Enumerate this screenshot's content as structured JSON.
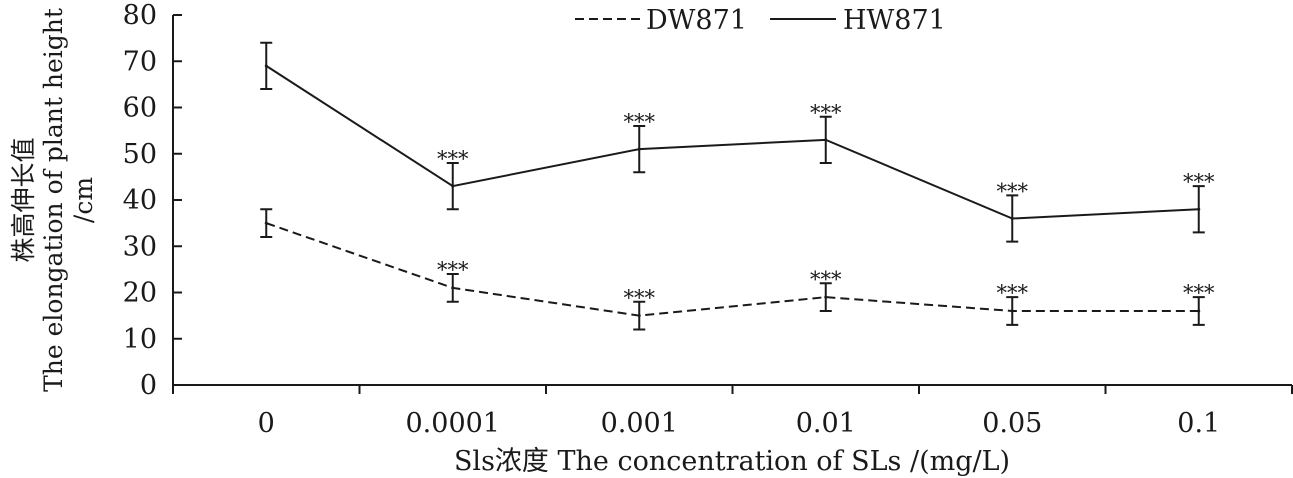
{
  "chart_data": {
    "type": "line",
    "categories": [
      "0",
      "0.0001",
      "0.001",
      "0.01",
      "0.05",
      "0.1"
    ],
    "xlabel": "Sls浓度 The concentration of SLs /(mg/L)",
    "ylabel": [
      "株高伸长值",
      "The elongation of plant height",
      "/cm"
    ],
    "ylim": [
      0,
      80
    ],
    "yticks": [
      0,
      10,
      20,
      30,
      40,
      50,
      60,
      70,
      80
    ],
    "grid": false,
    "legend_position": "top-center",
    "series": [
      {
        "name": "DW871",
        "style": "dashed",
        "color": "#1a1a1a",
        "values": [
          35,
          21,
          15,
          19,
          16,
          16
        ],
        "errors": [
          3,
          3,
          3,
          3,
          3,
          3
        ],
        "annotations": [
          "",
          "***",
          "***",
          "***",
          "***",
          "***"
        ]
      },
      {
        "name": "HW871",
        "style": "solid",
        "color": "#1a1a1a",
        "values": [
          69,
          43,
          51,
          53,
          36,
          38
        ],
        "errors": [
          5,
          5,
          5,
          5,
          5,
          5
        ],
        "annotations": [
          "",
          "***",
          "***",
          "***",
          "***",
          "***"
        ]
      }
    ]
  }
}
